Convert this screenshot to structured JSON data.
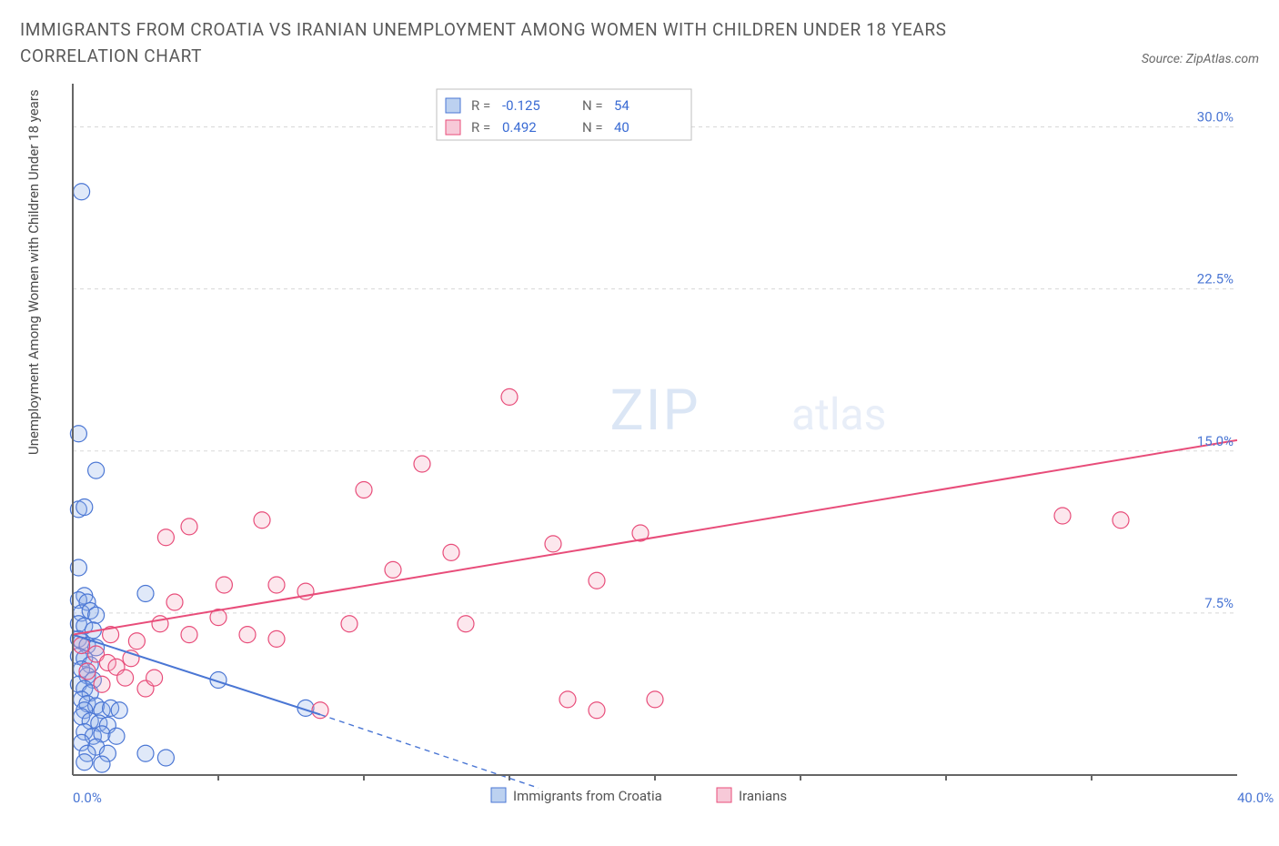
{
  "title": "IMMIGRANTS FROM CROATIA VS IRANIAN UNEMPLOYMENT AMONG WOMEN WITH CHILDREN UNDER 18 YEARS CORRELATION CHART",
  "source_label": "Source: ZipAtlas.com",
  "watermark_main": "ZIP",
  "watermark_sub": "atlas",
  "y_axis_label": "Unemployment Among Women with Children Under 18 years",
  "chart": {
    "type": "scatter",
    "background_color": "#ffffff",
    "grid_color": "#d8d8d8",
    "axis_color": "#666666",
    "xlim": [
      0,
      40
    ],
    "ylim": [
      0,
      32
    ],
    "x_ticks": [
      0,
      40
    ],
    "y_ticks": [
      7.5,
      15.0,
      22.5,
      30.0
    ],
    "x_tick_labels": [
      "0.0%",
      "40.0%"
    ],
    "y_tick_labels": [
      "7.5%",
      "15.0%",
      "22.5%",
      "30.0%"
    ],
    "tick_label_color": "#4a76d4",
    "tick_label_fontsize": 15,
    "marker_radius": 9,
    "marker_stroke_width": 1.2,
    "marker_fill_opacity": 0.28,
    "trend_line_width": 2,
    "dash_pattern": "6 5"
  },
  "series": [
    {
      "name": "Immigrants from Croatia",
      "color_stroke": "#4a76d4",
      "color_fill": "#8fb0e8",
      "R": "-0.125",
      "N": "54",
      "trend": {
        "x1": 0,
        "y1": 6.5,
        "x2": 8.5,
        "y2": 2.8,
        "dash_x2": 16,
        "dash_y2": -0.6
      },
      "points": [
        [
          0.3,
          27.0
        ],
        [
          0.2,
          15.8
        ],
        [
          0.8,
          14.1
        ],
        [
          0.2,
          12.3
        ],
        [
          0.4,
          12.4
        ],
        [
          0.2,
          9.6
        ],
        [
          0.4,
          8.3
        ],
        [
          0.2,
          8.1
        ],
        [
          0.5,
          8.0
        ],
        [
          0.3,
          7.5
        ],
        [
          0.6,
          7.6
        ],
        [
          0.8,
          7.4
        ],
        [
          0.2,
          7.0
        ],
        [
          0.4,
          6.9
        ],
        [
          0.7,
          6.7
        ],
        [
          0.2,
          6.3
        ],
        [
          0.3,
          6.2
        ],
        [
          0.5,
          6.0
        ],
        [
          0.8,
          5.9
        ],
        [
          0.2,
          5.5
        ],
        [
          0.4,
          5.4
        ],
        [
          0.6,
          5.1
        ],
        [
          0.3,
          4.9
        ],
        [
          0.5,
          4.6
        ],
        [
          0.7,
          4.4
        ],
        [
          0.2,
          4.2
        ],
        [
          0.4,
          4.0
        ],
        [
          0.6,
          3.8
        ],
        [
          0.3,
          3.5
        ],
        [
          0.5,
          3.3
        ],
        [
          0.8,
          3.2
        ],
        [
          0.4,
          3.0
        ],
        [
          1.0,
          3.0
        ],
        [
          1.3,
          3.1
        ],
        [
          1.6,
          3.0
        ],
        [
          0.3,
          2.7
        ],
        [
          0.6,
          2.5
        ],
        [
          0.9,
          2.4
        ],
        [
          1.2,
          2.3
        ],
        [
          0.4,
          2.0
        ],
        [
          0.7,
          1.8
        ],
        [
          1.0,
          1.9
        ],
        [
          1.5,
          1.8
        ],
        [
          0.3,
          1.5
        ],
        [
          0.8,
          1.3
        ],
        [
          0.5,
          1.0
        ],
        [
          1.2,
          1.0
        ],
        [
          2.5,
          1.0
        ],
        [
          3.2,
          0.8
        ],
        [
          0.4,
          0.6
        ],
        [
          1.0,
          0.5
        ],
        [
          2.5,
          8.4
        ],
        [
          5.0,
          4.4
        ],
        [
          8.0,
          3.1
        ]
      ]
    },
    {
      "name": "Iranians",
      "color_stroke": "#e84d7a",
      "color_fill": "#f5a8c0",
      "R": "0.492",
      "N": "40",
      "trend": {
        "x1": 0,
        "y1": 6.5,
        "x2": 40,
        "y2": 15.5
      },
      "points": [
        [
          0.3,
          6.0
        ],
        [
          0.8,
          5.6
        ],
        [
          1.2,
          5.2
        ],
        [
          0.5,
          4.8
        ],
        [
          1.5,
          5.0
        ],
        [
          2.0,
          5.4
        ],
        [
          1.0,
          4.2
        ],
        [
          1.8,
          4.5
        ],
        [
          2.5,
          4.0
        ],
        [
          1.3,
          6.5
        ],
        [
          2.2,
          6.2
        ],
        [
          3.0,
          7.0
        ],
        [
          2.8,
          4.5
        ],
        [
          3.5,
          8.0
        ],
        [
          4.0,
          6.5
        ],
        [
          3.2,
          11.0
        ],
        [
          4.0,
          11.5
        ],
        [
          5.0,
          7.3
        ],
        [
          5.2,
          8.8
        ],
        [
          6.0,
          6.5
        ],
        [
          6.5,
          11.8
        ],
        [
          7.0,
          6.3
        ],
        [
          7.0,
          8.8
        ],
        [
          8.0,
          8.5
        ],
        [
          8.5,
          3.0
        ],
        [
          9.5,
          7.0
        ],
        [
          10.0,
          13.2
        ],
        [
          11.0,
          9.5
        ],
        [
          12.0,
          14.4
        ],
        [
          13.0,
          10.3
        ],
        [
          13.5,
          7.0
        ],
        [
          15.0,
          17.5
        ],
        [
          16.5,
          10.7
        ],
        [
          17.0,
          3.5
        ],
        [
          18.0,
          9.0
        ],
        [
          19.5,
          11.2
        ],
        [
          20.0,
          3.5
        ],
        [
          18.0,
          3.0
        ],
        [
          34.0,
          12.0
        ],
        [
          36.0,
          11.8
        ]
      ]
    }
  ],
  "legend_top": {
    "border_color": "#bfbfbf",
    "bg_color": "#ffffff",
    "rows": [
      {
        "swatch_fill": "#bcd1f0",
        "swatch_stroke": "#4a76d4",
        "r_label": "R =",
        "r_value": "-0.125",
        "n_label": "N =",
        "n_value": "54"
      },
      {
        "swatch_fill": "#f7c9d8",
        "swatch_stroke": "#e84d7a",
        "r_label": "R =",
        "r_value": "0.492",
        "n_label": "N =",
        "n_value": "40"
      }
    ],
    "value_color": "#3b6cd4",
    "label_color": "#666666"
  },
  "legend_bottom": {
    "items": [
      {
        "swatch_fill": "#bcd1f0",
        "swatch_stroke": "#4a76d4",
        "label": "Immigrants from Croatia"
      },
      {
        "swatch_fill": "#f7c9d8",
        "swatch_stroke": "#e84d7a",
        "label": "Iranians"
      }
    ]
  }
}
